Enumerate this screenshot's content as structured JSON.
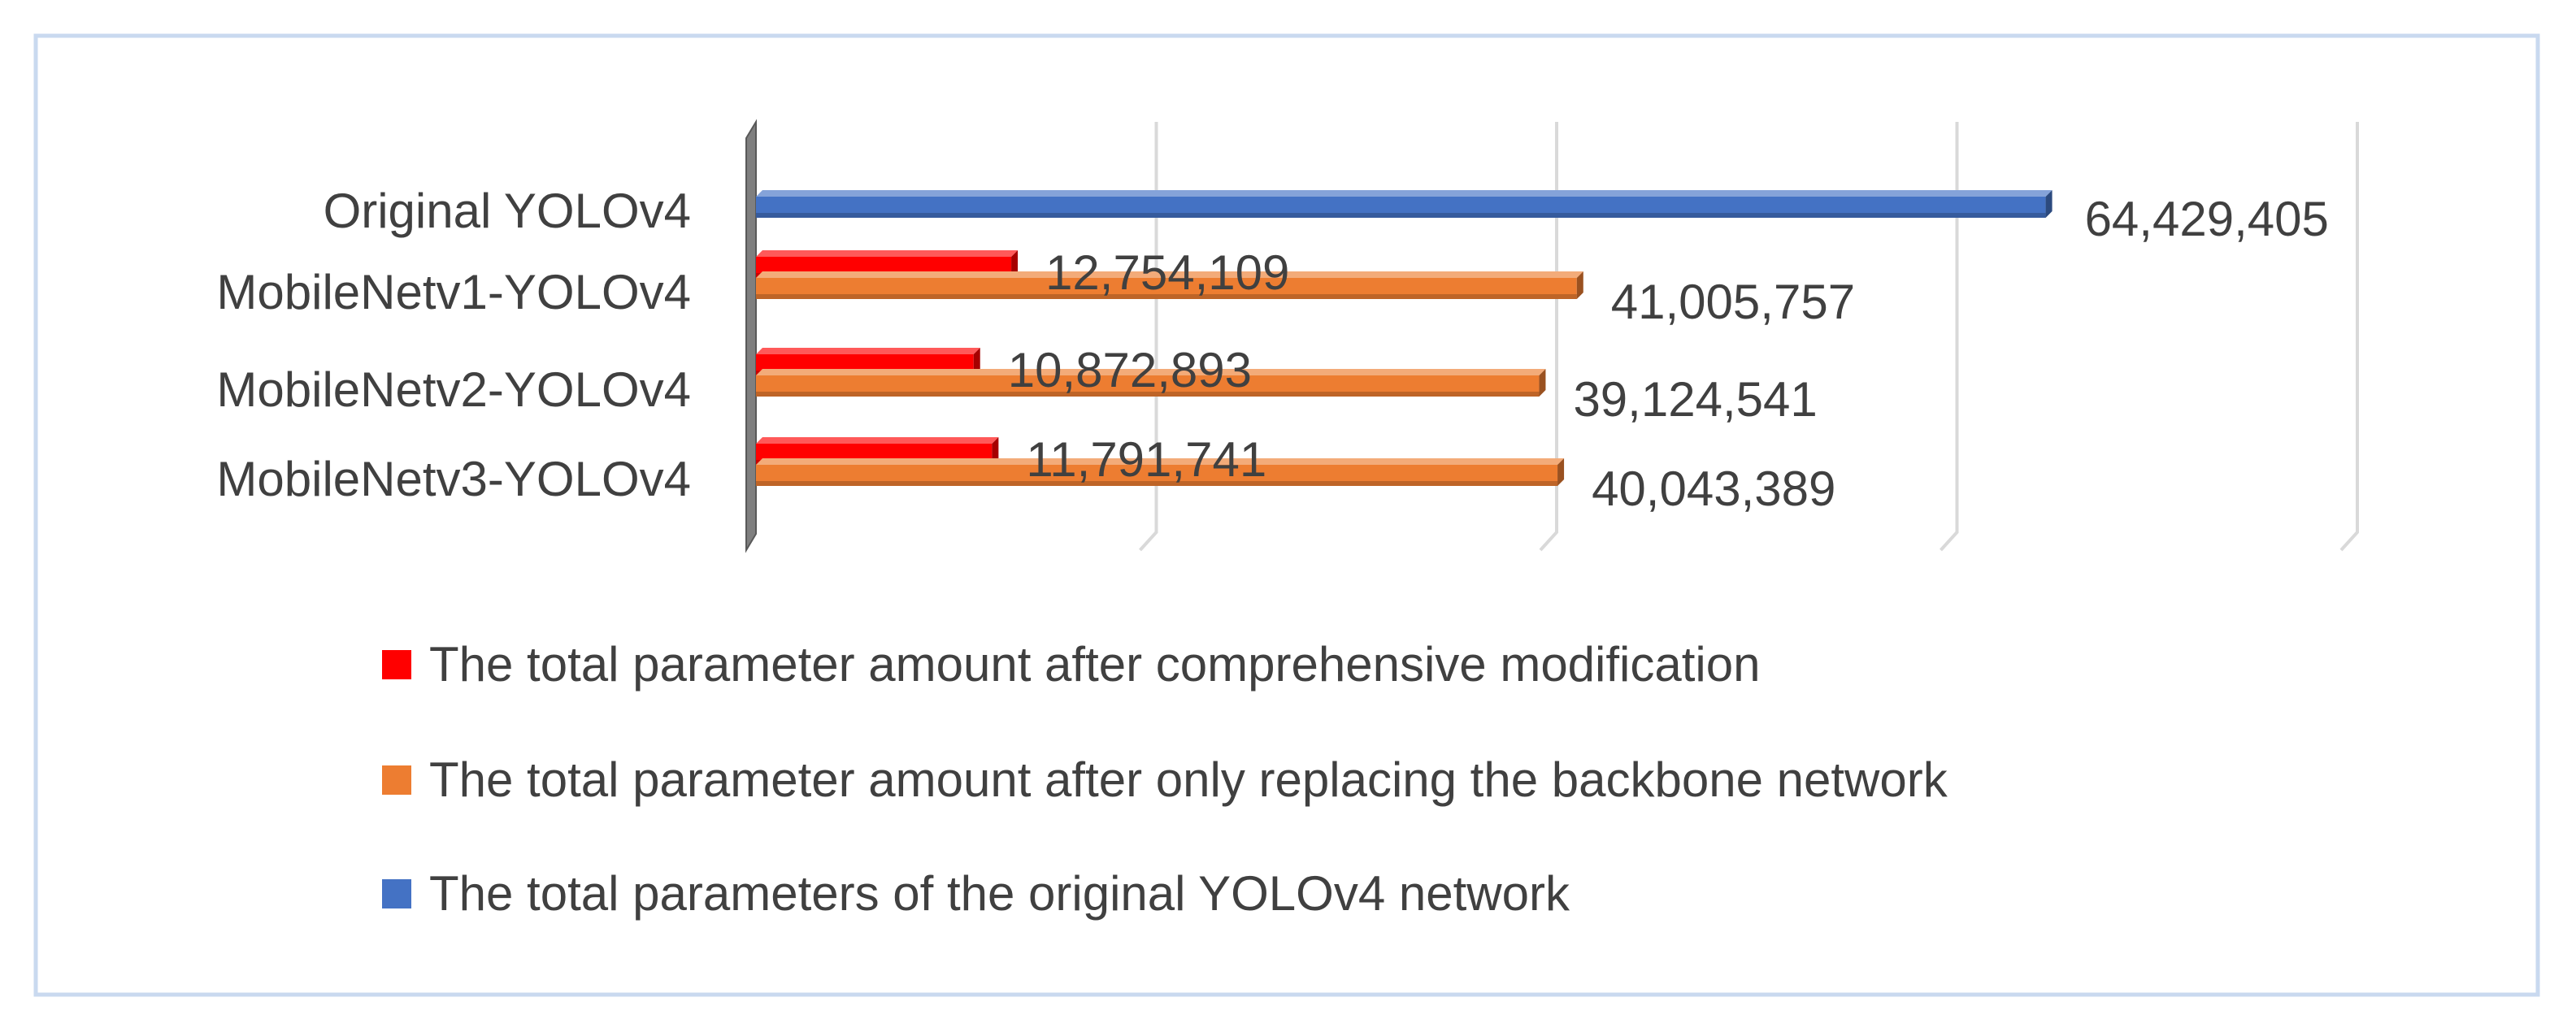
{
  "chart_data": {
    "type": "bar",
    "orientation": "horizontal",
    "style": "3d",
    "categories": [
      "Original YOLOv4",
      "MobileNetv1-YOLOv4",
      "MobileNetv2-YOLOv4",
      "MobileNetv3-YOLOv4"
    ],
    "series": [
      {
        "name": "The total parameter amount after comprehensive modification",
        "color": "#ff0000",
        "values": [
          null,
          12754109,
          10872893,
          11791741
        ],
        "labels": [
          "",
          "12,754,109",
          "10,872,893",
          "11,791,741"
        ]
      },
      {
        "name": "The total parameter amount after only replacing the backbone network",
        "color": "#ed7d31",
        "values": [
          null,
          41005757,
          39124541,
          40043389
        ],
        "labels": [
          "",
          "41,005,757",
          "39,124,541",
          "40,043,389"
        ]
      },
      {
        "name": "The total parameters of the original YOLOv4 network",
        "color": "#4472c4",
        "values": [
          64429405,
          null,
          null,
          null
        ],
        "labels": [
          "64,429,405",
          "",
          "",
          ""
        ]
      }
    ],
    "xlim": [
      0,
      80000000
    ],
    "grid": true,
    "legend": "bottom",
    "frame_color": "#c9d9ef"
  }
}
